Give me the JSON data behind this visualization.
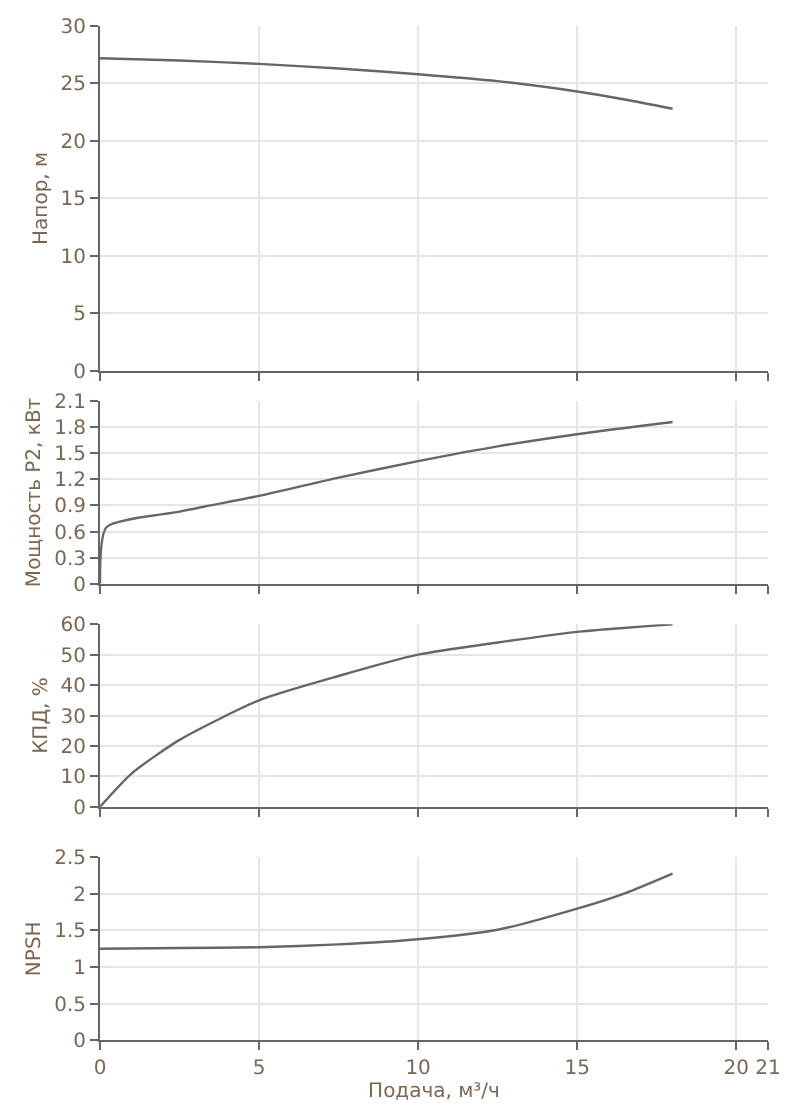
{
  "chart_data": [
    {
      "type": "line",
      "ylabel": "Напор, м",
      "x": [
        0,
        2.5,
        5,
        7.5,
        10,
        12.5,
        15,
        16.5,
        18
      ],
      "series": [
        {
          "color": "#666666",
          "values": [
            27.2,
            27.0,
            26.7,
            26.3,
            25.8,
            25.2,
            24.3,
            23.6,
            22.8
          ]
        }
      ],
      "xlim": [
        0,
        21
      ],
      "xticks": [
        0,
        5,
        10,
        15,
        20,
        21
      ],
      "ylim": [
        0,
        30
      ],
      "yticks": [
        0,
        5,
        10,
        15,
        20,
        25,
        30
      ],
      "grid": true,
      "tick_labels": "y"
    },
    {
      "type": "line",
      "ylabel": "Мощность P2, кВт",
      "x": [
        0,
        0.2,
        2.5,
        5,
        7.5,
        10,
        12.5,
        15,
        18
      ],
      "series": [
        {
          "color": "#666666",
          "values": [
            0,
            0.65,
            0.83,
            1.01,
            1.22,
            1.41,
            1.58,
            1.72,
            1.86
          ]
        }
      ],
      "xlim": [
        0,
        21
      ],
      "xticks": [
        0,
        5,
        10,
        15,
        20,
        21
      ],
      "ylim": [
        0,
        2.1
      ],
      "yticks": [
        0,
        0.3,
        0.6,
        0.9,
        1.2,
        1.5,
        1.8,
        2.1
      ],
      "grid": true,
      "tick_labels": "y"
    },
    {
      "type": "line",
      "ylabel": "КПД, %",
      "x": [
        0,
        1,
        2.5,
        5,
        7.5,
        10,
        12.5,
        15,
        18
      ],
      "series": [
        {
          "color": "#666666",
          "values": [
            0,
            11,
            22,
            35,
            43,
            50,
            54,
            57.5,
            60
          ]
        }
      ],
      "xlim": [
        0,
        21
      ],
      "xticks": [
        0,
        5,
        10,
        15,
        20,
        21
      ],
      "ylim": [
        0,
        60
      ],
      "yticks": [
        0,
        10,
        20,
        30,
        40,
        50,
        60
      ],
      "grid": true,
      "tick_labels": "y"
    },
    {
      "type": "line",
      "ylabel": "NPSH",
      "xlabel": "Подача, м³/ч",
      "x": [
        0,
        2.5,
        5,
        7.5,
        10,
        12.5,
        15,
        16.5,
        18
      ],
      "series": [
        {
          "color": "#666666",
          "values": [
            1.25,
            1.26,
            1.27,
            1.31,
            1.38,
            1.51,
            1.8,
            2.01,
            2.28
          ]
        }
      ],
      "xlim": [
        0,
        21
      ],
      "xticks": [
        0,
        5,
        10,
        15,
        20,
        21
      ],
      "ylim": [
        0,
        2.5
      ],
      "yticks": [
        0,
        0.5,
        1,
        1.5,
        2,
        2.5
      ],
      "grid": true
    }
  ]
}
